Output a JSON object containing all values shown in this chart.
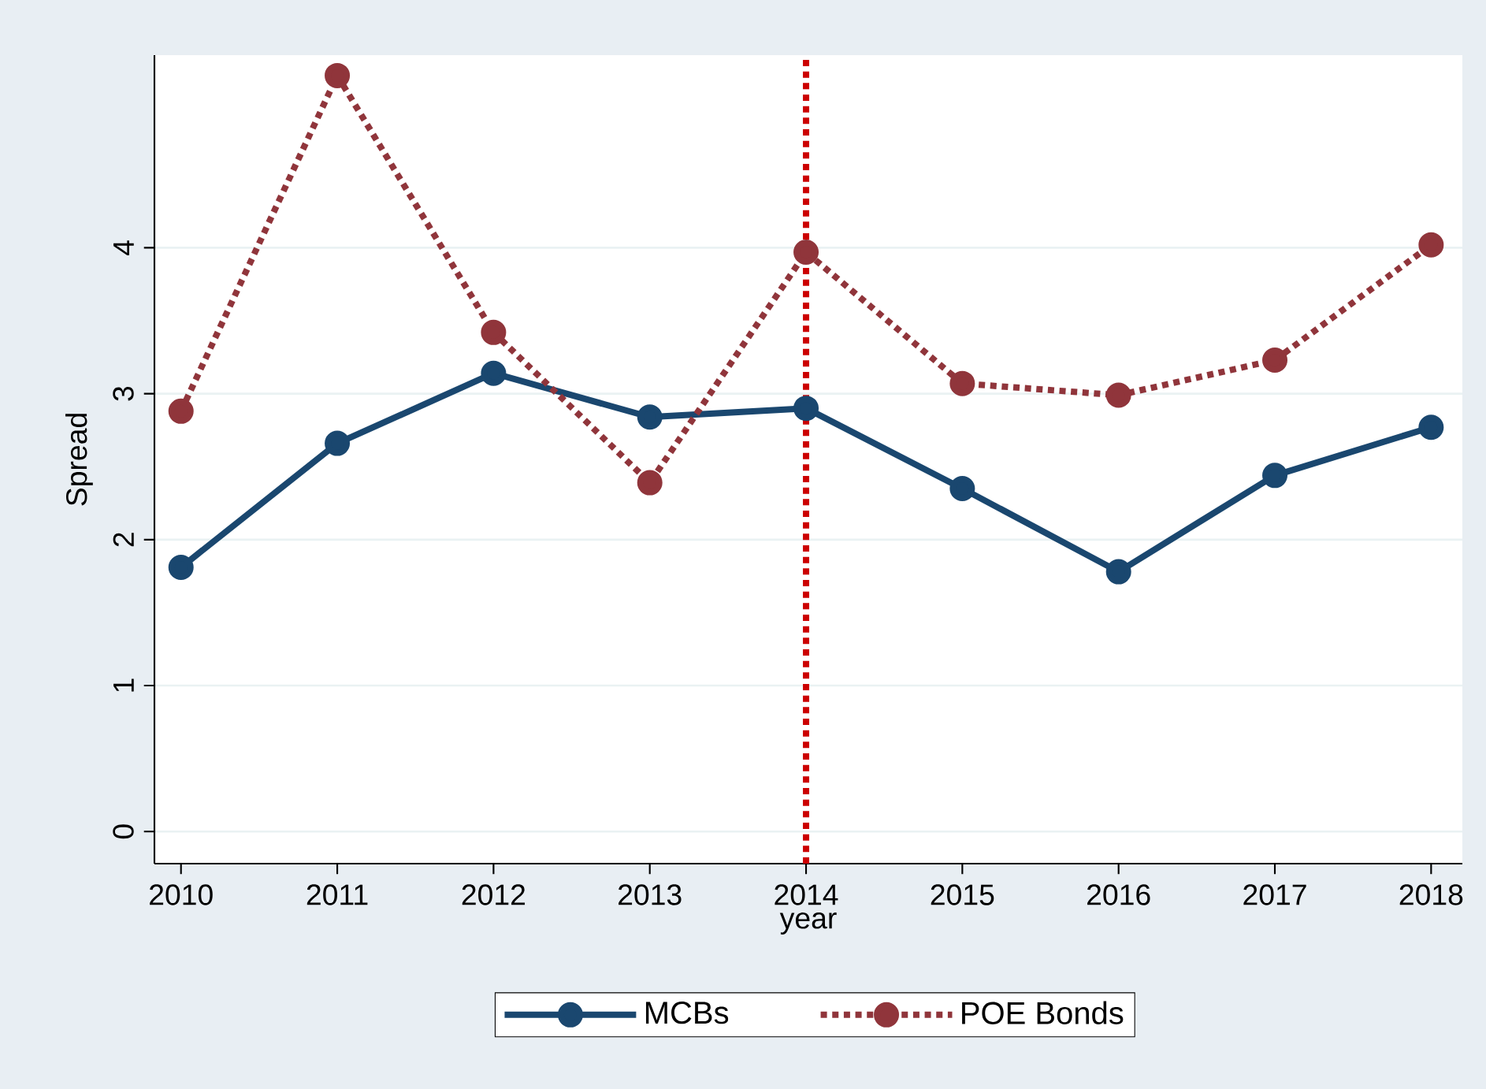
{
  "chart_data": {
    "type": "line",
    "xlabel": "year",
    "ylabel": "Spread",
    "x": [
      2010,
      2011,
      2012,
      2013,
      2014,
      2015,
      2016,
      2017,
      2018
    ],
    "series": [
      {
        "name": "MCBs",
        "color": "#1a476f",
        "line_style": "solid",
        "values": [
          1.81,
          2.66,
          3.14,
          2.84,
          2.9,
          2.35,
          1.78,
          2.44,
          2.77
        ]
      },
      {
        "name": "POE Bonds",
        "color": "#90353b",
        "line_style": "dotted",
        "values": [
          2.88,
          5.18,
          3.42,
          2.39,
          3.97,
          3.07,
          2.99,
          3.23,
          4.02
        ]
      }
    ],
    "xlim": [
      2009.83,
      2018.2
    ],
    "ylim": [
      -0.22,
      5.32
    ],
    "xticks": [
      2010,
      2011,
      2012,
      2013,
      2014,
      2015,
      2016,
      2017,
      2018
    ],
    "yticks": [
      0,
      1,
      2,
      3,
      4
    ],
    "ref_lines": [
      {
        "axis": "x",
        "value": 2014,
        "color": "#cc0000",
        "line_style": "dotted"
      }
    ],
    "grid": "y",
    "legend": "bottom",
    "marker": "circle"
  }
}
